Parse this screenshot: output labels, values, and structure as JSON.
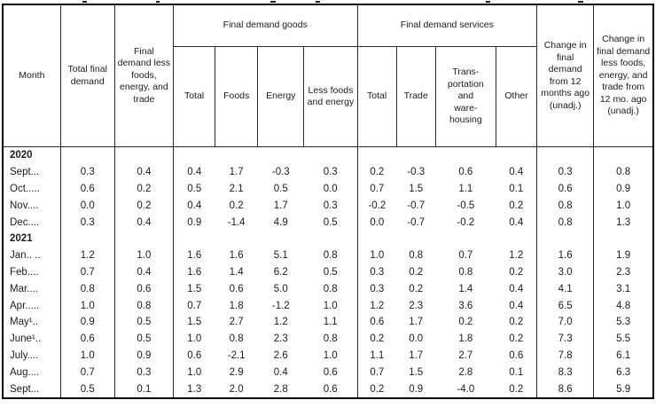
{
  "table": {
    "headers": {
      "month": "Month",
      "total_final_demand": "Total final demand",
      "fd_less_fet": "Final demand less foods, energy, and trade",
      "goods_group": "Final demand goods",
      "services_group": "Final demand services",
      "goods_sub": [
        "Total",
        "Foods",
        "Energy",
        "Less foods and energy"
      ],
      "services_sub": [
        "Total",
        "Trade",
        "Trans-\nportation\nand\nware-\nhousing",
        "Other"
      ],
      "change_12mo": "Change in final demand from 12 months ago (unadj.)",
      "change_less_12mo": "Change in final demand less foods, energy, and trade from 12 mo. ago (unadj.)"
    },
    "rows": [
      {
        "type": "year",
        "label": "2020",
        "values": [
          "",
          "",
          "",
          "",
          "",
          "",
          "",
          "",
          "",
          "",
          "",
          ""
        ]
      },
      {
        "type": "data",
        "label": "Sept...",
        "values": [
          "0.3",
          "0.4",
          "0.4",
          "1.7",
          "-0.3",
          "0.3",
          "0.2",
          "-0.3",
          "0.6",
          "0.4",
          "0.3",
          "0.8"
        ]
      },
      {
        "type": "data",
        "label": "Oct.....",
        "values": [
          "0.6",
          "0.2",
          "0.5",
          "2.1",
          "0.5",
          "0.0",
          "0.7",
          "1.5",
          "1.1",
          "0.1",
          "0.6",
          "0.9"
        ]
      },
      {
        "type": "data",
        "label": "Nov....",
        "values": [
          "0.0",
          "0.2",
          "0.4",
          "0.2",
          "1.7",
          "0.3",
          "-0.2",
          "-0.7",
          "-0.5",
          "0.2",
          "0.8",
          "1.0"
        ]
      },
      {
        "type": "data",
        "label": "Dec....",
        "values": [
          "0.3",
          "0.4",
          "0.9",
          "-1.4",
          "4.9",
          "0.5",
          "0.0",
          "-0.7",
          "-0.2",
          "0.4",
          "0.8",
          "1.3"
        ]
      },
      {
        "type": "year",
        "label": "2021",
        "values": [
          "",
          "",
          "",
          "",
          "",
          "",
          "",
          "",
          "",
          "",
          "",
          ""
        ]
      },
      {
        "type": "data",
        "label": "Jan.. ..",
        "values": [
          "1.2",
          "1.0",
          "1.6",
          "1.6",
          "5.1",
          "0.8",
          "1.0",
          "0.8",
          "0.7",
          "1.2",
          "1.6",
          "1.9"
        ]
      },
      {
        "type": "data",
        "label": "Feb....",
        "values": [
          "0.7",
          "0.4",
          "1.6",
          "1.4",
          "6.2",
          "0.5",
          "0.3",
          "0.2",
          "0.8",
          "0.2",
          "3.0",
          "2.3"
        ]
      },
      {
        "type": "data",
        "label": "Mar....",
        "values": [
          "0.8",
          "0.6",
          "1.5",
          "0.6",
          "5.0",
          "0.8",
          "0.3",
          "0.2",
          "1.4",
          "0.4",
          "4.1",
          "3.1"
        ]
      },
      {
        "type": "data",
        "label": "Apr.....",
        "values": [
          "1.0",
          "0.8",
          "0.7",
          "1.8",
          "-1.2",
          "1.0",
          "1.2",
          "2.3",
          "3.6",
          "0.4",
          "6.5",
          "4.8"
        ]
      },
      {
        "type": "data",
        "label": "May¹..",
        "values": [
          "0.9",
          "0.5",
          "1.5",
          "2.7",
          "1.2",
          "1.1",
          "0.6",
          "1.7",
          "0.2",
          "0.2",
          "7.0",
          "5.3"
        ]
      },
      {
        "type": "data",
        "label": "June¹..",
        "values": [
          "0.6",
          "0.5",
          "1.0",
          "0.8",
          "2.3",
          "0.8",
          "0.2",
          "0.0",
          "1.8",
          "0.2",
          "7.3",
          "5.5"
        ]
      },
      {
        "type": "data",
        "label": "July....",
        "values": [
          "1.0",
          "0.9",
          "0.6",
          "-2.1",
          "2.6",
          "1.0",
          "1.1",
          "1.7",
          "2.7",
          "0.6",
          "7.8",
          "6.1"
        ]
      },
      {
        "type": "data",
        "label": "Aug....",
        "values": [
          "0.7",
          "0.3",
          "1.0",
          "2.9",
          "0.4",
          "0.6",
          "0.7",
          "1.5",
          "2.8",
          "0.1",
          "8.3",
          "6.3"
        ]
      },
      {
        "type": "data",
        "label": "Sept...",
        "values": [
          "0.5",
          "0.1",
          "1.3",
          "2.0",
          "2.8",
          "0.6",
          "0.2",
          "0.9",
          "-4.0",
          "0.2",
          "8.6",
          "5.9"
        ]
      }
    ]
  }
}
